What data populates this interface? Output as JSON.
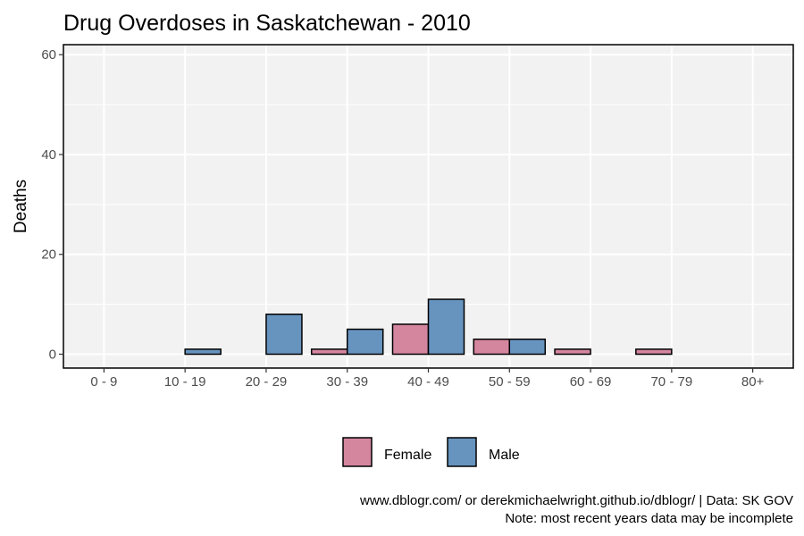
{
  "chart_data": {
    "type": "bar",
    "title": "Drug Overdoses in Saskatchewan - 2010",
    "xlabel": "",
    "ylabel": "Deaths",
    "categories": [
      "0 - 9",
      "10 - 19",
      "20 - 29",
      "30 - 39",
      "40 - 49",
      "50 - 59",
      "60 - 69",
      "70 - 79",
      "80+"
    ],
    "series": [
      {
        "name": "Female",
        "color": "#d4869f",
        "values": [
          0,
          0,
          0,
          1,
          6,
          3,
          1,
          1,
          0
        ]
      },
      {
        "name": "Male",
        "color": "#6794bf",
        "values": [
          0,
          1,
          8,
          5,
          11,
          3,
          0,
          0,
          0
        ]
      }
    ],
    "ylim": [
      0,
      62
    ],
    "yticks": [
      0,
      20,
      40,
      60
    ],
    "grid": true,
    "legend_position": "bottom",
    "caption": [
      "www.dblogr.com/ or derekmichaelwright.github.io/dblogr/ | Data: SK GOV",
      "Note: most recent years data may be incomplete"
    ]
  }
}
